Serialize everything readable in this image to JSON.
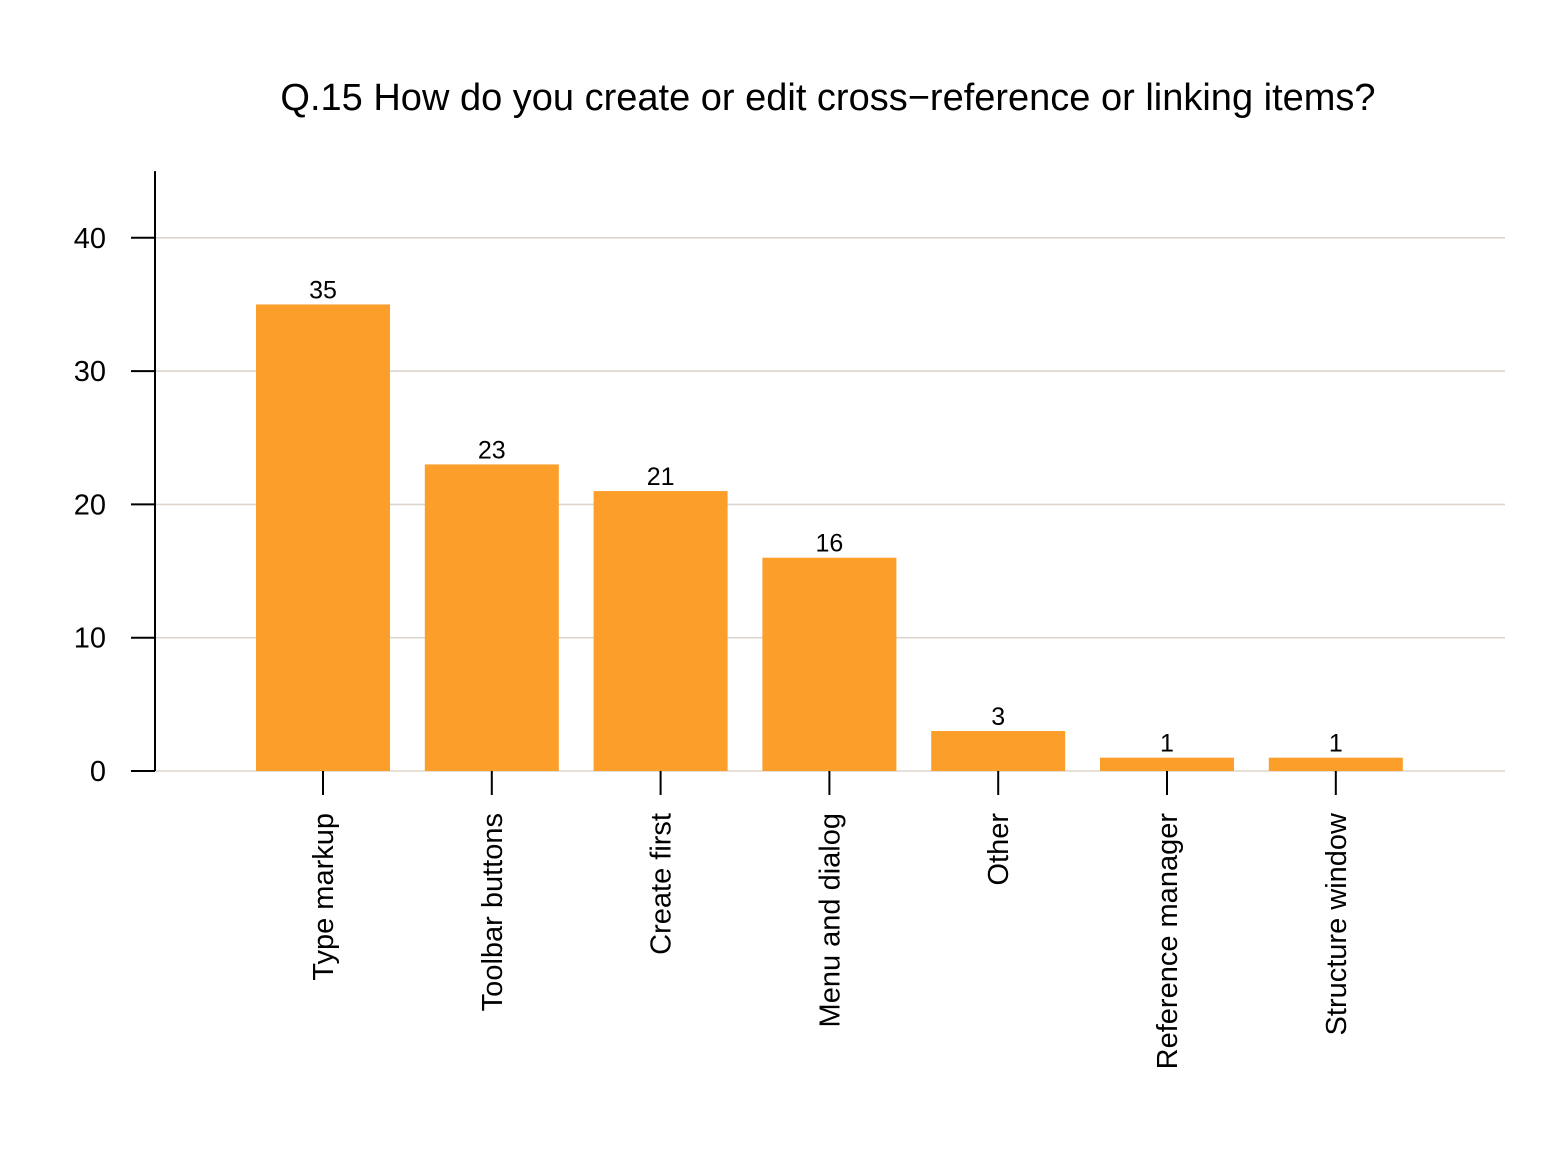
{
  "chart_data": {
    "type": "bar",
    "title": "Q.15 How do you create or edit cross−reference or linking items?",
    "xlabel": "",
    "ylabel": "",
    "categories": [
      "Type markup",
      "Toolbar buttons",
      "Create first",
      "Menu and dialog",
      "Other",
      "Reference manager",
      "Structure window"
    ],
    "values": [
      35,
      23,
      21,
      16,
      3,
      1,
      1
    ],
    "data_labels": [
      "35",
      "23",
      "21",
      "16",
      "3",
      "1",
      "1"
    ],
    "ylim": [
      0,
      45
    ],
    "yticks": [
      0,
      10,
      20,
      30,
      40
    ],
    "ytick_labels": [
      "0",
      "10",
      "20",
      "30",
      "40"
    ],
    "grid": true,
    "legend": "none",
    "colors": {
      "bar": "#fb9e2a",
      "grid": "#ddd5cc",
      "axis": "#000000",
      "background": "#ffffff"
    }
  }
}
